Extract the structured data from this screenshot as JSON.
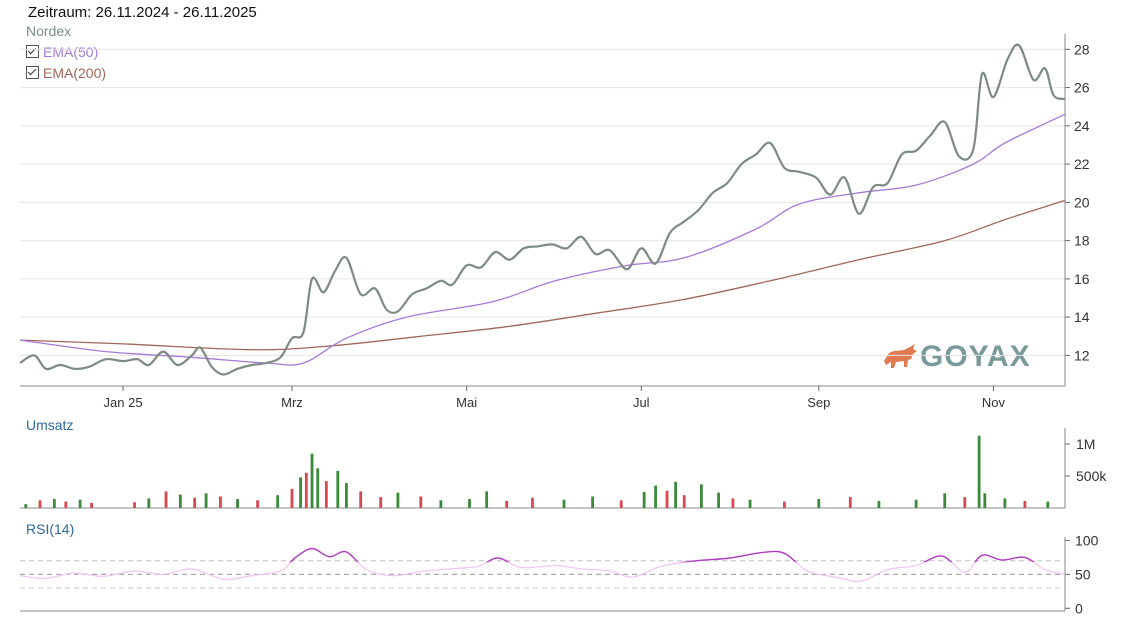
{
  "header": {
    "period_label": "Zeitraum: 26.11.2024 - 26.11.2025",
    "series_name": "Nordex"
  },
  "legend": {
    "ema50_label": "EMA(50)",
    "ema200_label": "EMA(200)",
    "ema50_checked": true,
    "ema200_checked": true
  },
  "logo": {
    "text": "GOYAX",
    "icon": "bull-icon",
    "color": "#7a9a9a",
    "icon_color": "#e07a50"
  },
  "colors": {
    "price": "#7d8b84",
    "ema50": "#a57ad8",
    "ema200": "#a0685a",
    "vol_up": "#3b8a3b",
    "vol_down": "#d9474f",
    "rsi": "#b03fc0",
    "panel_label": "#2a6a9e"
  },
  "chart_data": [
    {
      "type": "line",
      "title": "Nordex",
      "x_ticks": [
        "Jan 25",
        "Mrz",
        "Mai",
        "Jul",
        "Sep",
        "Nov"
      ],
      "y_ticks": [
        12,
        14,
        16,
        18,
        20,
        22,
        24,
        26,
        28
      ],
      "ylim": [
        10.4,
        28.8
      ],
      "x_range": [
        "2024-11-26",
        "2025-11-26"
      ],
      "grid": true,
      "series": [
        {
          "name": "Nordex",
          "points": [
            [
              "2024-11-26",
              11.6
            ],
            [
              "2024-12-01",
              12.0
            ],
            [
              "2024-12-05",
              11.3
            ],
            [
              "2024-12-10",
              11.5
            ],
            [
              "2024-12-15",
              11.3
            ],
            [
              "2024-12-20",
              11.4
            ],
            [
              "2024-12-26",
              11.8
            ],
            [
              "2025-01-01",
              11.7
            ],
            [
              "2025-01-06",
              11.8
            ],
            [
              "2025-01-10",
              11.5
            ],
            [
              "2025-01-15",
              12.2
            ],
            [
              "2025-01-20",
              11.5
            ],
            [
              "2025-01-25",
              12.0
            ],
            [
              "2025-01-28",
              12.4
            ],
            [
              "2025-02-01",
              11.4
            ],
            [
              "2025-02-05",
              11.0
            ],
            [
              "2025-02-10",
              11.3
            ],
            [
              "2025-02-15",
              11.5
            ],
            [
              "2025-02-20",
              11.6
            ],
            [
              "2025-02-25",
              11.9
            ],
            [
              "2025-03-01",
              12.9
            ],
            [
              "2025-03-05",
              13.2
            ],
            [
              "2025-03-08",
              16.0
            ],
            [
              "2025-03-12",
              15.3
            ],
            [
              "2025-03-16",
              16.4
            ],
            [
              "2025-03-20",
              17.1
            ],
            [
              "2025-03-25",
              15.2
            ],
            [
              "2025-03-30",
              15.5
            ],
            [
              "2025-04-03",
              14.4
            ],
            [
              "2025-04-07",
              14.3
            ],
            [
              "2025-04-12",
              15.2
            ],
            [
              "2025-04-17",
              15.5
            ],
            [
              "2025-04-22",
              15.9
            ],
            [
              "2025-04-26",
              15.7
            ],
            [
              "2025-05-01",
              16.7
            ],
            [
              "2025-05-06",
              16.6
            ],
            [
              "2025-05-11",
              17.4
            ],
            [
              "2025-05-16",
              17.0
            ],
            [
              "2025-05-21",
              17.6
            ],
            [
              "2025-05-26",
              17.7
            ],
            [
              "2025-05-31",
              17.8
            ],
            [
              "2025-06-05",
              17.6
            ],
            [
              "2025-06-10",
              18.2
            ],
            [
              "2025-06-15",
              17.3
            ],
            [
              "2025-06-20",
              17.5
            ],
            [
              "2025-06-26",
              16.5
            ],
            [
              "2025-07-01",
              17.6
            ],
            [
              "2025-07-06",
              16.8
            ],
            [
              "2025-07-11",
              18.4
            ],
            [
              "2025-07-16",
              19.0
            ],
            [
              "2025-07-21",
              19.6
            ],
            [
              "2025-07-26",
              20.5
            ],
            [
              "2025-07-31",
              21.0
            ],
            [
              "2025-08-05",
              22.0
            ],
            [
              "2025-08-10",
              22.5
            ],
            [
              "2025-08-15",
              23.1
            ],
            [
              "2025-08-20",
              21.8
            ],
            [
              "2025-08-25",
              21.6
            ],
            [
              "2025-08-31",
              21.3
            ],
            [
              "2025-09-05",
              20.4
            ],
            [
              "2025-09-10",
              21.3
            ],
            [
              "2025-09-15",
              19.4
            ],
            [
              "2025-09-20",
              20.8
            ],
            [
              "2025-09-25",
              21.0
            ],
            [
              "2025-09-30",
              22.5
            ],
            [
              "2025-10-05",
              22.7
            ],
            [
              "2025-10-10",
              23.5
            ],
            [
              "2025-10-15",
              24.2
            ],
            [
              "2025-10-20",
              22.4
            ],
            [
              "2025-10-25",
              22.8
            ],
            [
              "2025-10-28",
              26.7
            ],
            [
              "2025-11-01",
              25.5
            ],
            [
              "2025-11-06",
              27.5
            ],
            [
              "2025-11-10",
              28.2
            ],
            [
              "2025-11-15",
              26.4
            ],
            [
              "2025-11-19",
              27.0
            ],
            [
              "2025-11-22",
              25.6
            ],
            [
              "2025-11-26",
              25.4
            ]
          ]
        },
        {
          "name": "EMA(50)",
          "points": [
            [
              "2024-11-26",
              12.8
            ],
            [
              "2024-12-26",
              12.2
            ],
            [
              "2025-01-25",
              11.9
            ],
            [
              "2025-02-20",
              11.6
            ],
            [
              "2025-03-05",
              11.6
            ],
            [
              "2025-03-20",
              12.9
            ],
            [
              "2025-04-10",
              14.0
            ],
            [
              "2025-05-10",
              14.8
            ],
            [
              "2025-06-01",
              15.9
            ],
            [
              "2025-06-26",
              16.7
            ],
            [
              "2025-07-16",
              17.1
            ],
            [
              "2025-08-10",
              18.6
            ],
            [
              "2025-08-25",
              19.9
            ],
            [
              "2025-09-15",
              20.5
            ],
            [
              "2025-10-05",
              20.9
            ],
            [
              "2025-10-25",
              22.0
            ],
            [
              "2025-11-05",
              23.1
            ],
            [
              "2025-11-26",
              24.6
            ]
          ]
        },
        {
          "name": "EMA(200)",
          "points": [
            [
              "2024-11-26",
              12.8
            ],
            [
              "2025-01-01",
              12.6
            ],
            [
              "2025-02-15",
              12.3
            ],
            [
              "2025-03-15",
              12.5
            ],
            [
              "2025-04-15",
              13.0
            ],
            [
              "2025-05-15",
              13.5
            ],
            [
              "2025-06-15",
              14.2
            ],
            [
              "2025-07-15",
              14.9
            ],
            [
              "2025-08-15",
              15.9
            ],
            [
              "2025-09-15",
              17.0
            ],
            [
              "2025-10-15",
              18.0
            ],
            [
              "2025-11-05",
              19.1
            ],
            [
              "2025-11-26",
              20.1
            ]
          ]
        }
      ]
    },
    {
      "type": "bar",
      "title": "Umsatz",
      "y_ticks": [
        "500k",
        "1M"
      ],
      "y_tick_values": [
        500000,
        1000000
      ],
      "ylim": [
        0,
        1250000
      ],
      "x_range": [
        "2024-11-26",
        "2025-11-26"
      ],
      "series": [
        {
          "name": "Umsatz",
          "points": [
            [
              "2024-11-28",
              60000,
              "up"
            ],
            [
              "2024-12-03",
              120000,
              "down"
            ],
            [
              "2024-12-08",
              140000,
              "up"
            ],
            [
              "2024-12-12",
              100000,
              "down"
            ],
            [
              "2024-12-17",
              130000,
              "up"
            ],
            [
              "2024-12-21",
              80000,
              "down"
            ],
            [
              "2025-01-05",
              90000,
              "down"
            ],
            [
              "2025-01-10",
              150000,
              "up"
            ],
            [
              "2025-01-16",
              260000,
              "down"
            ],
            [
              "2025-01-21",
              210000,
              "up"
            ],
            [
              "2025-01-26",
              160000,
              "down"
            ],
            [
              "2025-01-30",
              230000,
              "up"
            ],
            [
              "2025-02-04",
              180000,
              "down"
            ],
            [
              "2025-02-10",
              140000,
              "up"
            ],
            [
              "2025-02-17",
              120000,
              "down"
            ],
            [
              "2025-02-24",
              200000,
              "up"
            ],
            [
              "2025-03-01",
              300000,
              "down"
            ],
            [
              "2025-03-04",
              480000,
              "up"
            ],
            [
              "2025-03-06",
              550000,
              "down"
            ],
            [
              "2025-03-08",
              850000,
              "up"
            ],
            [
              "2025-03-10",
              620000,
              "up"
            ],
            [
              "2025-03-13",
              420000,
              "down"
            ],
            [
              "2025-03-17",
              580000,
              "up"
            ],
            [
              "2025-03-20",
              390000,
              "up"
            ],
            [
              "2025-03-25",
              260000,
              "down"
            ],
            [
              "2025-04-01",
              170000,
              "down"
            ],
            [
              "2025-04-07",
              240000,
              "up"
            ],
            [
              "2025-04-15",
              180000,
              "down"
            ],
            [
              "2025-04-22",
              120000,
              "up"
            ],
            [
              "2025-05-02",
              140000,
              "up"
            ],
            [
              "2025-05-08",
              260000,
              "up"
            ],
            [
              "2025-05-15",
              110000,
              "down"
            ],
            [
              "2025-05-24",
              160000,
              "down"
            ],
            [
              "2025-06-04",
              130000,
              "up"
            ],
            [
              "2025-06-14",
              180000,
              "up"
            ],
            [
              "2025-06-24",
              120000,
              "down"
            ],
            [
              "2025-07-02",
              250000,
              "up"
            ],
            [
              "2025-07-06",
              350000,
              "up"
            ],
            [
              "2025-07-10",
              270000,
              "down"
            ],
            [
              "2025-07-13",
              410000,
              "up"
            ],
            [
              "2025-07-16",
              200000,
              "down"
            ],
            [
              "2025-07-22",
              370000,
              "up"
            ],
            [
              "2025-07-28",
              240000,
              "up"
            ],
            [
              "2025-08-02",
              150000,
              "down"
            ],
            [
              "2025-08-08",
              130000,
              "up"
            ],
            [
              "2025-08-20",
              100000,
              "down"
            ],
            [
              "2025-09-01",
              140000,
              "up"
            ],
            [
              "2025-09-12",
              170000,
              "down"
            ],
            [
              "2025-09-22",
              110000,
              "up"
            ],
            [
              "2025-10-05",
              130000,
              "up"
            ],
            [
              "2025-10-15",
              230000,
              "up"
            ],
            [
              "2025-10-22",
              170000,
              "down"
            ],
            [
              "2025-10-27",
              1130000,
              "up"
            ],
            [
              "2025-10-29",
              230000,
              "up"
            ],
            [
              "2025-11-05",
              150000,
              "up"
            ],
            [
              "2025-11-12",
              110000,
              "down"
            ],
            [
              "2025-11-20",
              100000,
              "up"
            ]
          ]
        }
      ]
    },
    {
      "type": "line",
      "title": "RSI(14)",
      "y_ticks": [
        0,
        50,
        100
      ],
      "reference_lines": [
        30,
        50,
        70
      ],
      "ylim": [
        -4,
        105
      ],
      "x_range": [
        "2024-11-26",
        "2025-11-26"
      ],
      "series": [
        {
          "name": "RSI(14)",
          "points": [
            [
              "2024-11-26",
              48
            ],
            [
              "2024-12-05",
              44
            ],
            [
              "2024-12-15",
              52
            ],
            [
              "2024-12-25",
              47
            ],
            [
              "2025-01-05",
              55
            ],
            [
              "2025-01-15",
              50
            ],
            [
              "2025-01-25",
              58
            ],
            [
              "2025-02-05",
              43
            ],
            [
              "2025-02-15",
              48
            ],
            [
              "2025-02-25",
              55
            ],
            [
              "2025-03-02",
              74
            ],
            [
              "2025-03-08",
              88
            ],
            [
              "2025-03-14",
              76
            ],
            [
              "2025-03-20",
              83
            ],
            [
              "2025-03-27",
              57
            ],
            [
              "2025-04-05",
              48
            ],
            [
              "2025-04-15",
              54
            ],
            [
              "2025-04-25",
              58
            ],
            [
              "2025-05-05",
              62
            ],
            [
              "2025-05-12",
              74
            ],
            [
              "2025-05-20",
              60
            ],
            [
              "2025-06-01",
              63
            ],
            [
              "2025-06-10",
              58
            ],
            [
              "2025-06-20",
              55
            ],
            [
              "2025-06-28",
              46
            ],
            [
              "2025-07-08",
              62
            ],
            [
              "2025-07-20",
              70
            ],
            [
              "2025-08-01",
              74
            ],
            [
              "2025-08-12",
              82
            ],
            [
              "2025-08-20",
              81
            ],
            [
              "2025-08-28",
              55
            ],
            [
              "2025-09-08",
              45
            ],
            [
              "2025-09-16",
              40
            ],
            [
              "2025-09-25",
              57
            ],
            [
              "2025-10-05",
              63
            ],
            [
              "2025-10-14",
              77
            ],
            [
              "2025-10-22",
              53
            ],
            [
              "2025-10-28",
              78
            ],
            [
              "2025-11-04",
              71
            ],
            [
              "2025-11-12",
              75
            ],
            [
              "2025-11-19",
              57
            ],
            [
              "2025-11-26",
              50
            ]
          ]
        }
      ]
    }
  ]
}
